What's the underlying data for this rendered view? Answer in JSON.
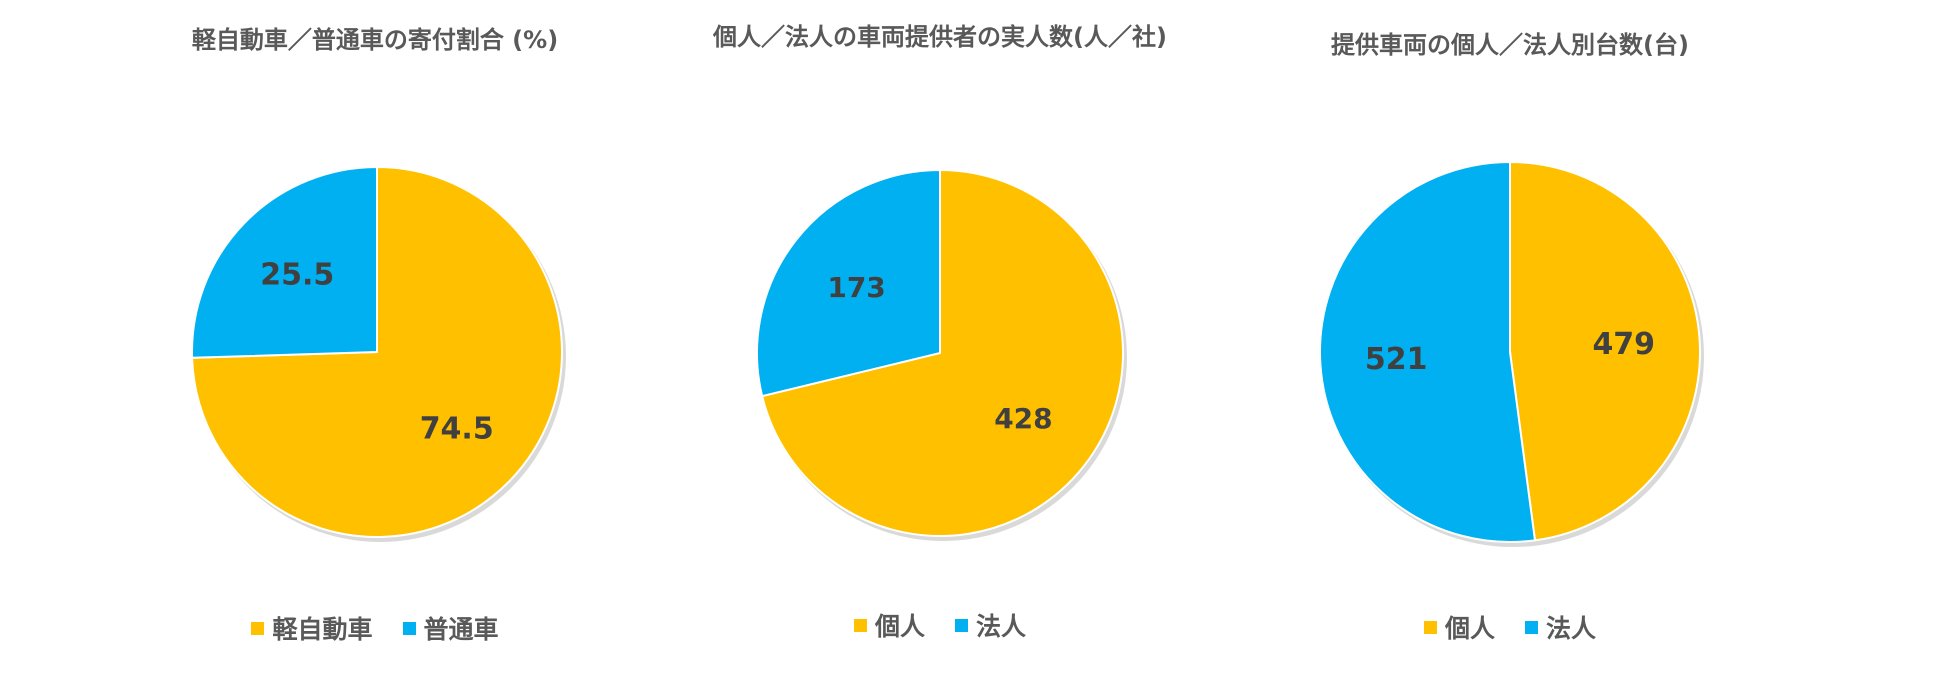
{
  "colors": {
    "gold": "#FFC000",
    "blue": "#00B0F0",
    "label": "#404040",
    "legend_text": "#595959"
  },
  "chart_data": [
    {
      "type": "pie",
      "title": "軽自動車／普通車の寄付割合 (%)",
      "start_angle_deg": 0,
      "slices": [
        {
          "label": "軽自動車",
          "value": 74.5,
          "color": "#FFC000"
        },
        {
          "label": "普通車",
          "value": 25.5,
          "color": "#00B0F0"
        }
      ],
      "legend": {
        "position": "bottom",
        "entries": [
          "軽自動車",
          "普通車"
        ]
      }
    },
    {
      "type": "pie",
      "title": "個人／法人の車両提供者の実人数(人／社)",
      "start_angle_deg": 0,
      "slices": [
        {
          "label": "個人",
          "value": 428,
          "color": "#FFC000"
        },
        {
          "label": "法人",
          "value": 173,
          "color": "#00B0F0"
        }
      ],
      "legend": {
        "position": "bottom",
        "entries": [
          "個人",
          "法人"
        ]
      }
    },
    {
      "type": "pie",
      "title": "提供車両の個人／法人別台数(台)",
      "start_angle_deg": 0,
      "slices": [
        {
          "label": "個人",
          "value": 479,
          "color": "#FFC000"
        },
        {
          "label": "法人",
          "value": 521,
          "color": "#00B0F0"
        }
      ],
      "legend": {
        "position": "bottom",
        "entries": [
          "個人",
          "法人"
        ]
      }
    }
  ]
}
